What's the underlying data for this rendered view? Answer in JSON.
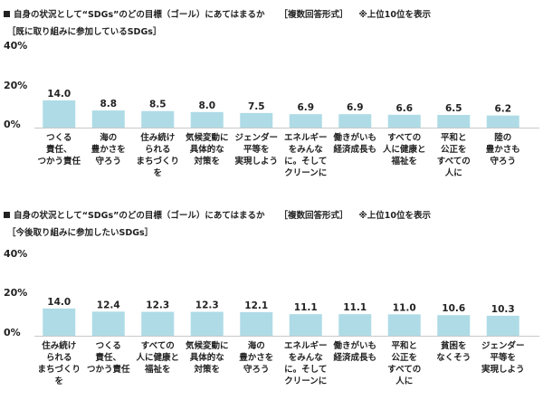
{
  "chart_data": [
    {
      "type": "bar",
      "title": "自身の状況として“SDGs”のどの目標（ゴール）にあてはまるか",
      "note1": "［複数回答形式］",
      "note2": "※上位10位を表示",
      "subtitle": "［既に取り組みに参加しているSDGs］",
      "yticks": [
        "40%",
        "20%",
        "0%"
      ],
      "ylim": [
        0,
        40
      ],
      "bar_color": "#aedbe6",
      "categories": [
        [
          "つくる",
          "責任、",
          "つかう責任"
        ],
        [
          "海の",
          "豊かさを",
          "守ろう"
        ],
        [
          "住み続け",
          "られる",
          "まちづくり",
          "を"
        ],
        [
          "気候変動に",
          "具体的な",
          "対策を"
        ],
        [
          "ジェンダー",
          "平等を",
          "実現しよう"
        ],
        [
          "エネルギー",
          "をみんな",
          "に。そして",
          "クリーンに"
        ],
        [
          "働きがいも",
          "経済成長も"
        ],
        [
          "すべての",
          "人に健康と",
          "福祉を"
        ],
        [
          "平和と",
          "公正を",
          "すべての",
          "人に"
        ],
        [
          "陸の",
          "豊かさも",
          "守ろう"
        ]
      ],
      "values": [
        14.0,
        8.8,
        8.5,
        8.0,
        7.5,
        6.9,
        6.9,
        6.6,
        6.5,
        6.2
      ],
      "value_labels": [
        "14.0",
        "8.8",
        "8.5",
        "8.0",
        "7.5",
        "6.9",
        "6.9",
        "6.6",
        "6.5",
        "6.2"
      ]
    },
    {
      "type": "bar",
      "title": "自身の状況として“SDGs”のどの目標（ゴール）にあてはまるか",
      "note1": "［複数回答形式］",
      "note2": "※上位10位を表示",
      "subtitle": "［今後取り組みに参加したいSDGs］",
      "yticks": [
        "40%",
        "20%",
        "0%"
      ],
      "ylim": [
        0,
        40
      ],
      "bar_color": "#aedbe6",
      "categories": [
        [
          "住み続け",
          "られる",
          "まちづくり",
          "を"
        ],
        [
          "つくる",
          "責任、",
          "つかう責任"
        ],
        [
          "すべての",
          "人に健康と",
          "福祉を"
        ],
        [
          "気候変動に",
          "具体的な",
          "対策を"
        ],
        [
          "海の",
          "豊かさを",
          "守ろう"
        ],
        [
          "エネルギー",
          "をみんな",
          "に。そして",
          "クリーンに"
        ],
        [
          "働きがいも",
          "経済成長も"
        ],
        [
          "平和と",
          "公正を",
          "すべての",
          "人に"
        ],
        [
          "貧困を",
          "なくそう"
        ],
        [
          "ジェンダー",
          "平等を",
          "実現しよう"
        ]
      ],
      "values": [
        14.0,
        12.4,
        12.3,
        12.3,
        12.1,
        11.1,
        11.1,
        11.0,
        10.6,
        10.3
      ],
      "value_labels": [
        "14.0",
        "12.4",
        "12.3",
        "12.3",
        "12.1",
        "11.1",
        "11.1",
        "11.0",
        "10.6",
        "10.3"
      ]
    }
  ]
}
